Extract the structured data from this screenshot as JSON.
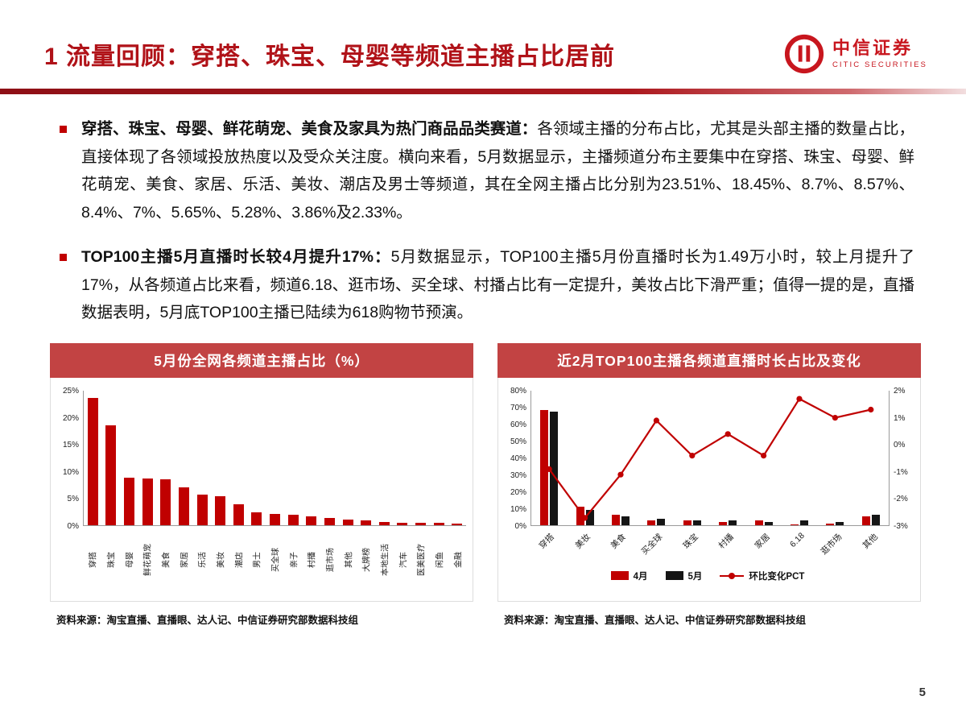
{
  "colors": {
    "accent_red": "#b01218",
    "brand_red": "#c8161e",
    "chart_header_bg": "#c24343",
    "bar_red": "#c00000",
    "bar_black": "#151515",
    "line_red": "#c00000",
    "bullet_red": "#c00000"
  },
  "header": {
    "title": "1 流量回顾：穿搭、珠宝、母婴等频道主播占比居前",
    "logo_cn": "中信证券",
    "logo_en": "CITIC SECURITIES"
  },
  "bullets": [
    {
      "lead": "穿搭、珠宝、母婴、鲜花萌宠、美食及家具为热门商品品类赛道：",
      "body": "各领域主播的分布占比，尤其是头部主播的数量占比，直接体现了各领域投放热度以及受众关注度。横向来看，5月数据显示，主播频道分布主要集中在穿搭、珠宝、母婴、鲜花萌宠、美食、家居、乐活、美妆、潮店及男士等频道，其在全网主播占比分别为23.51%、18.45%、8.7%、8.57%、8.4%、7%、5.65%、5.28%、3.86%及2.33%。"
    },
    {
      "lead": "TOP100主播5月直播时长较4月提升17%：",
      "body": "5月数据显示，TOP100主播5月份直播时长为1.49万小时，较上月提升了17%，从各频道占比来看，频道6.18、逛市场、买全球、村播占比有一定提升，美妆占比下滑严重；值得一提的是，直播数据表明，5月底TOP100主播已陆续为618购物节预演。"
    }
  ],
  "chart_data": [
    {
      "type": "bar",
      "title": "5月份全网各频道主播占比（%）",
      "categories": [
        "穿搭",
        "珠宝",
        "母婴",
        "鲜花萌宠",
        "美食",
        "家居",
        "乐活",
        "美妆",
        "潮店",
        "男士",
        "买全球",
        "亲子",
        "村播",
        "逛市场",
        "其他",
        "大牌榜",
        "本地生活",
        "汽车",
        "医美医疗",
        "闲鱼",
        "金融"
      ],
      "values": [
        23.51,
        18.45,
        8.7,
        8.57,
        8.4,
        7,
        5.65,
        5.28,
        3.86,
        2.33,
        2.1,
        1.9,
        1.6,
        1.3,
        1.1,
        0.9,
        0.55,
        0.5,
        0.45,
        0.4,
        0.35
      ],
      "ylim": [
        0,
        25
      ],
      "yticks": [
        0,
        5,
        10,
        15,
        20,
        25
      ],
      "ylabel": "",
      "xlabel": "",
      "legend": "none",
      "source": "资料来源：淘宝直播、直播眼、达人记、中信证券研究部数据科技组"
    },
    {
      "type": "bar+line",
      "title": "近2月TOP100主播各频道直播时长占比及变化",
      "categories": [
        "穿搭",
        "美妆",
        "美食",
        "买全球",
        "珠宝",
        "村播",
        "家居",
        "6.18",
        "逛市场",
        "其他"
      ],
      "series": [
        {
          "name": "4月",
          "color_key": "bar_red",
          "values": [
            68,
            11,
            6,
            3,
            3,
            2,
            3,
            0.5,
            1,
            5
          ]
        },
        {
          "name": "5月",
          "color_key": "bar_black",
          "values": [
            67,
            9,
            5,
            4,
            3,
            3,
            2,
            3,
            2,
            6
          ]
        }
      ],
      "line": {
        "name": "环比变化PCT",
        "axis": "right",
        "values": [
          -0.9,
          -2.7,
          -1.1,
          0.9,
          -0.4,
          0.4,
          -0.4,
          1.7,
          1.0,
          1.3
        ]
      },
      "ylim_left": [
        0,
        80
      ],
      "yticks_left": [
        0,
        10,
        20,
        30,
        40,
        50,
        60,
        70,
        80
      ],
      "ylim_right": [
        -3,
        2
      ],
      "yticks_right": [
        -3,
        -2,
        -1,
        0,
        1,
        2
      ],
      "legend_position": "bottom",
      "source": "资料来源：淘宝直播、直播眼、达人记、中信证券研究部数据科技组"
    }
  ],
  "page_number": "5"
}
